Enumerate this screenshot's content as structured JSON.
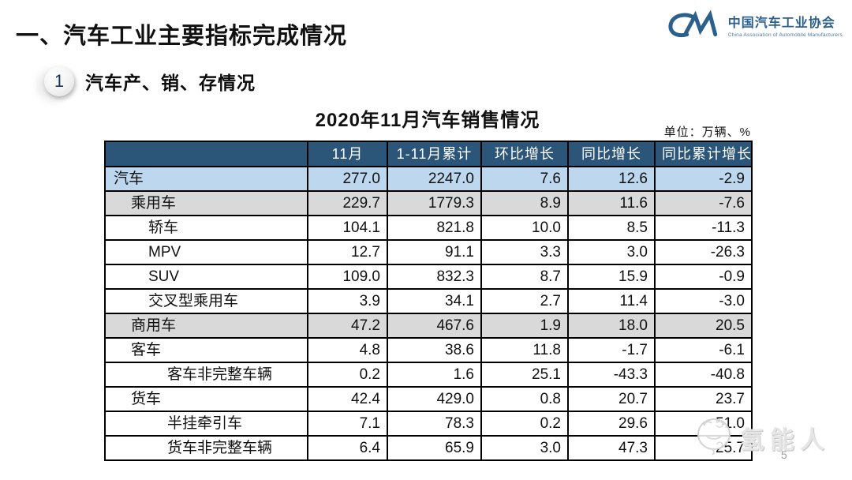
{
  "page": {
    "title": "一、汽车工业主要指标完成情况",
    "page_number": "5"
  },
  "logo": {
    "mark": "CM-monogram",
    "name_cn": "中国汽车工业协会",
    "name_en": "China Association of Automobile Manufacturers"
  },
  "section": {
    "badge": "1",
    "title": "汽车产、销、存情况"
  },
  "table": {
    "title": "2020年11月汽车销售情况",
    "unit_note": "单位：万辆、%",
    "columns": [
      "",
      "11月",
      "1-11月累计",
      "环比增长",
      "同比增长",
      "同比累计增长"
    ],
    "rows": [
      {
        "label": "汽车",
        "indent": 0,
        "bg": "blue",
        "values": [
          "277.0",
          "2247.0",
          "7.6",
          "12.6",
          "-2.9"
        ]
      },
      {
        "label": "乘用车",
        "indent": 1,
        "bg": "gray",
        "values": [
          "229.7",
          "1779.3",
          "8.9",
          "11.6",
          "-7.6"
        ]
      },
      {
        "label": "轿车",
        "indent": 2,
        "bg": "white",
        "values": [
          "104.1",
          "821.8",
          "10.0",
          "8.5",
          "-11.3"
        ]
      },
      {
        "label": "MPV",
        "indent": 2,
        "bg": "white",
        "values": [
          "12.7",
          "91.1",
          "3.3",
          "3.0",
          "-26.3"
        ]
      },
      {
        "label": "SUV",
        "indent": 2,
        "bg": "white",
        "values": [
          "109.0",
          "832.3",
          "8.7",
          "15.9",
          "-0.9"
        ]
      },
      {
        "label": "交叉型乘用车",
        "indent": 2,
        "bg": "white",
        "values": [
          "3.9",
          "34.1",
          "2.7",
          "11.4",
          "-3.0"
        ]
      },
      {
        "label": "商用车",
        "indent": 1,
        "bg": "gray",
        "values": [
          "47.2",
          "467.6",
          "1.9",
          "18.0",
          "20.5"
        ]
      },
      {
        "label": "客车",
        "indent": 1,
        "bg": "white",
        "values": [
          "4.8",
          "38.6",
          "11.8",
          "-1.7",
          "-6.1"
        ]
      },
      {
        "label": "客车非完整车辆",
        "indent": 3,
        "bg": "white",
        "values": [
          "0.2",
          "1.6",
          "25.1",
          "-43.3",
          "-40.8"
        ]
      },
      {
        "label": "货车",
        "indent": 1,
        "bg": "white",
        "values": [
          "42.4",
          "429.0",
          "0.8",
          "20.7",
          "23.7"
        ]
      },
      {
        "label": "半挂牵引车",
        "indent": 3,
        "bg": "white",
        "values": [
          "7.1",
          "78.3",
          "0.2",
          "29.6",
          "51.0"
        ]
      },
      {
        "label": "货车非完整车辆",
        "indent": 3,
        "bg": "white",
        "values": [
          "6.4",
          "65.9",
          "3.0",
          "47.3",
          "25.7"
        ]
      }
    ]
  },
  "watermark": {
    "text": "氢能人"
  },
  "colors": {
    "header_bg": "#2B567A",
    "row_blue": "#BDD7EE",
    "row_gray": "#D9D9D9",
    "border": "#000000",
    "logo_blue": "#2B5F8C",
    "accent_dark": "#17365D",
    "watermark_gray": "#E0E0E0"
  }
}
